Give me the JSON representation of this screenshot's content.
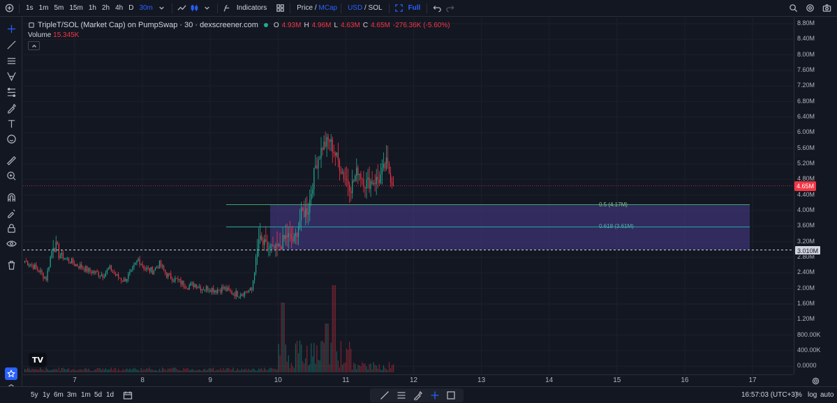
{
  "toolbar": {
    "intervals": [
      "1s",
      "1m",
      "5m",
      "15m",
      "1h",
      "2h",
      "4h",
      "D",
      "30m"
    ],
    "active_interval": "30m",
    "indicators_label": "Indicators",
    "price_label": "Price",
    "price_sep": "/",
    "mcap_label": "MCap",
    "usd_label": "USD",
    "sol_label": "SOL",
    "full_label": "Full"
  },
  "legend": {
    "title": "TripleT/SOL (Market Cap) on PumpSwap · 30 · dexscreener.com",
    "open_key": "O",
    "open": "4.93M",
    "high_key": "H",
    "high": "4.96M",
    "low_key": "L",
    "low": "4.63M",
    "close_key": "C",
    "close": "4.65M",
    "change": "-276.36K (-5.60%)",
    "volume_label": "Volume",
    "volume_value": "15.345K"
  },
  "fib": {
    "level1": "0.5 (4.17M)",
    "level2": "0.618 (3.61M)"
  },
  "price_axis": {
    "ticks": [
      "8.80M",
      "8.40M",
      "8.00M",
      "7.60M",
      "7.20M",
      "6.80M",
      "6.40M",
      "6.00M",
      "5.60M",
      "5.20M",
      "4.80M",
      "4.40M",
      "4.00M",
      "3.60M",
      "3.20M",
      "2.80M",
      "2.40M",
      "2.00M",
      "1.60M",
      "1.20M",
      "800.00K",
      "400.00K",
      "0.0000"
    ],
    "last_price": "4.65M",
    "hline_price": "3.010M"
  },
  "time_axis": {
    "labels": [
      "7",
      "8",
      "9",
      "10",
      "11",
      "12",
      "13",
      "14",
      "15",
      "16",
      "17"
    ]
  },
  "bottom": {
    "ranges": [
      "5y",
      "1y",
      "6m",
      "3m",
      "1m",
      "5d",
      "1d"
    ],
    "clock": "16:57:03 (UTC+3)",
    "percent": "%",
    "log": "log",
    "auto": "auto"
  },
  "colors": {
    "up": "#22ab94",
    "down": "#f23645",
    "fib_zone": "#4a3d8f",
    "background": "#131722"
  },
  "chart_data": {
    "type": "candlestick",
    "approximate_close_series_M": [
      2.7,
      2.6,
      2.45,
      2.25,
      3.15,
      2.85,
      2.75,
      2.62,
      2.55,
      2.45,
      2.4,
      2.35,
      2.5,
      2.3,
      2.2,
      2.4,
      2.75,
      2.5,
      2.45,
      2.62,
      2.35,
      2.25,
      2.15,
      2.05,
      2.1,
      2.0,
      2.0,
      1.95,
      2.0,
      1.9,
      1.85,
      1.9,
      1.95,
      3.25,
      3.05,
      3.0,
      3.1,
      3.35,
      3.2,
      3.9,
      4.05,
      5.15,
      5.65,
      5.8,
      5.35,
      4.9,
      4.6,
      5.05,
      4.7,
      4.75,
      4.8,
      5.2,
      4.65
    ],
    "volume_axis_visible": false
  }
}
